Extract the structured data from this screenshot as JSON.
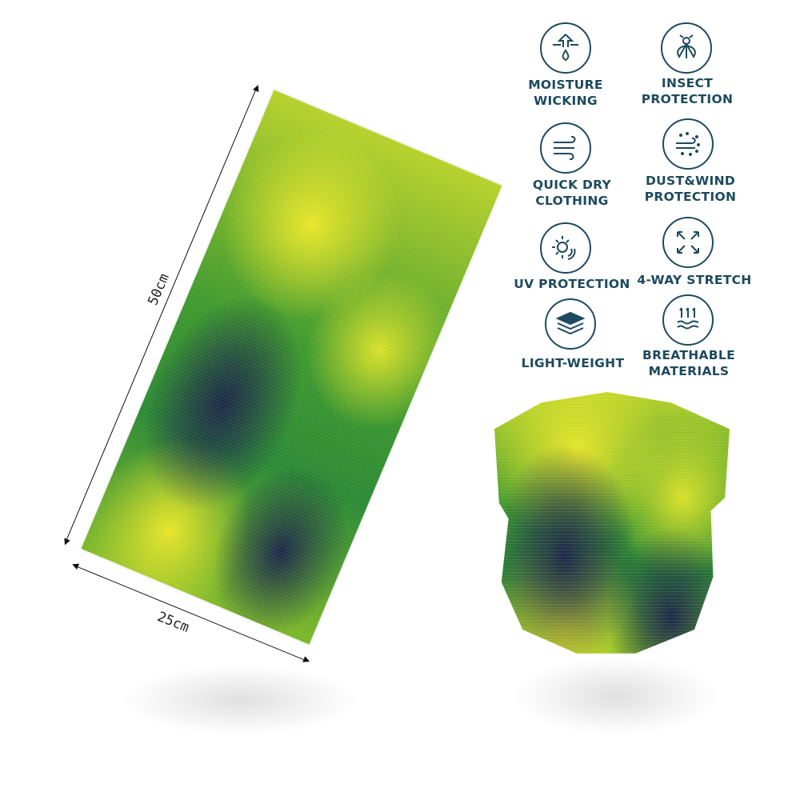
{
  "dimensions": {
    "height_label": "50cm",
    "width_label": "25cm"
  },
  "brand_color": "#1d4a5e",
  "features": [
    {
      "icon": "moisture-wicking-icon",
      "label": "MOISTURE\nWICKING"
    },
    {
      "icon": "insect-icon",
      "label": "INSECT\nPROTECTION"
    },
    {
      "icon": "wind-icon",
      "label": "QUICK DRY\nCLOTHING"
    },
    {
      "icon": "dust-wind-icon",
      "label": "DUST&WIND\nPROTECTION"
    },
    {
      "icon": "sun-icon",
      "label": "UV PROTECTION"
    },
    {
      "icon": "stretch-arrows-icon",
      "label": "4-WAY STRETCH"
    },
    {
      "icon": "layers-icon",
      "label": "LIGHT-WEIGHT"
    },
    {
      "icon": "breathable-icon",
      "label": "BREATHABLE\nMATERIALS"
    }
  ]
}
